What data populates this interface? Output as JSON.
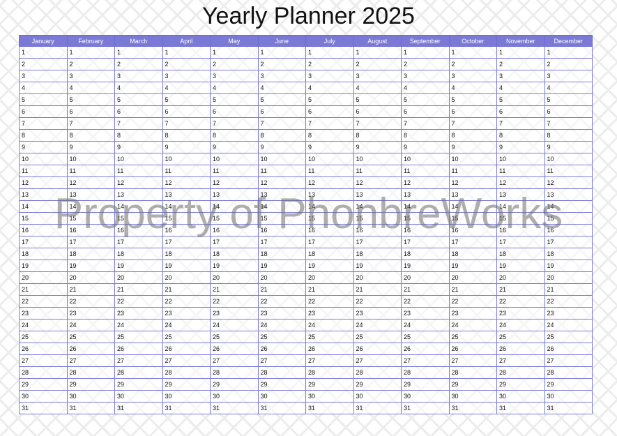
{
  "title": "Yearly Planner 2025",
  "watermark": "Property of PhonbreWorks",
  "months": [
    "January",
    "February",
    "March",
    "April",
    "May",
    "June",
    "July",
    "August",
    "September",
    "October",
    "November",
    "December"
  ],
  "days": [
    1,
    2,
    3,
    4,
    5,
    6,
    7,
    8,
    9,
    10,
    11,
    12,
    13,
    14,
    15,
    16,
    17,
    18,
    19,
    20,
    21,
    22,
    23,
    24,
    25,
    26,
    27,
    28,
    29,
    30,
    31
  ],
  "colors": {
    "header_bg": "#7a7ad6",
    "grid_line": "#7b7bd8",
    "header_text": "#ffffff"
  }
}
